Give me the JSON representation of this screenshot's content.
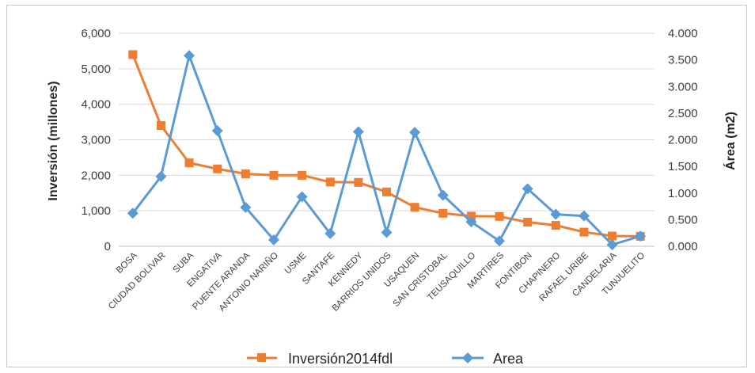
{
  "chart_data": {
    "type": "line",
    "title": "",
    "ylabel_left": "Inversión (millones)",
    "ylabel_right": "Área (m2)",
    "xlabel": "",
    "categories": [
      "BOSA",
      "CIUDAD BOLIVAR",
      "SUBA",
      "ENGATIVA",
      "PUENTE ARANDA",
      "ANTONIO NARIÑO",
      "USME",
      "SANTAFE",
      "KENNEDY",
      "BARRIOS UNIDOS",
      "USAQUEN",
      "SAN CRISTOBAL",
      "TEUSAQUILLO",
      "MARTIRES",
      "FONTIBON",
      "CHAPINERO",
      "RAFAEL URIBE",
      "CANDELARIA",
      "TUNJUELITO"
    ],
    "ylim_left": [
      0,
      6000
    ],
    "ylim_right": [
      0,
      4
    ],
    "left_ticks": [
      "0",
      "1,000",
      "2,000",
      "3,000",
      "4,000",
      "5,000",
      "6,000"
    ],
    "right_ticks": [
      "0.000",
      "0.500",
      "1.000",
      "1.500",
      "2.000",
      "2.500",
      "3.000",
      "3.500",
      "4.000"
    ],
    "grid": "horizontal",
    "legend_position": "bottom",
    "series": [
      {
        "name": "Inversión2014fdl",
        "axis": "left",
        "color": "#ed7d31",
        "marker": "square",
        "values": [
          5400,
          3400,
          2350,
          2180,
          2040,
          2000,
          2000,
          1810,
          1800,
          1530,
          1100,
          930,
          850,
          840,
          680,
          590,
          400,
          290,
          280
        ]
      },
      {
        "name": "Area",
        "axis": "right",
        "color": "#5b9bd5",
        "marker": "diamond",
        "values": [
          0.62,
          1.31,
          3.58,
          2.17,
          0.73,
          0.12,
          0.93,
          0.24,
          2.15,
          0.26,
          2.14,
          0.96,
          0.46,
          0.1,
          1.08,
          0.6,
          0.57,
          0.03,
          0.19
        ]
      }
    ]
  }
}
